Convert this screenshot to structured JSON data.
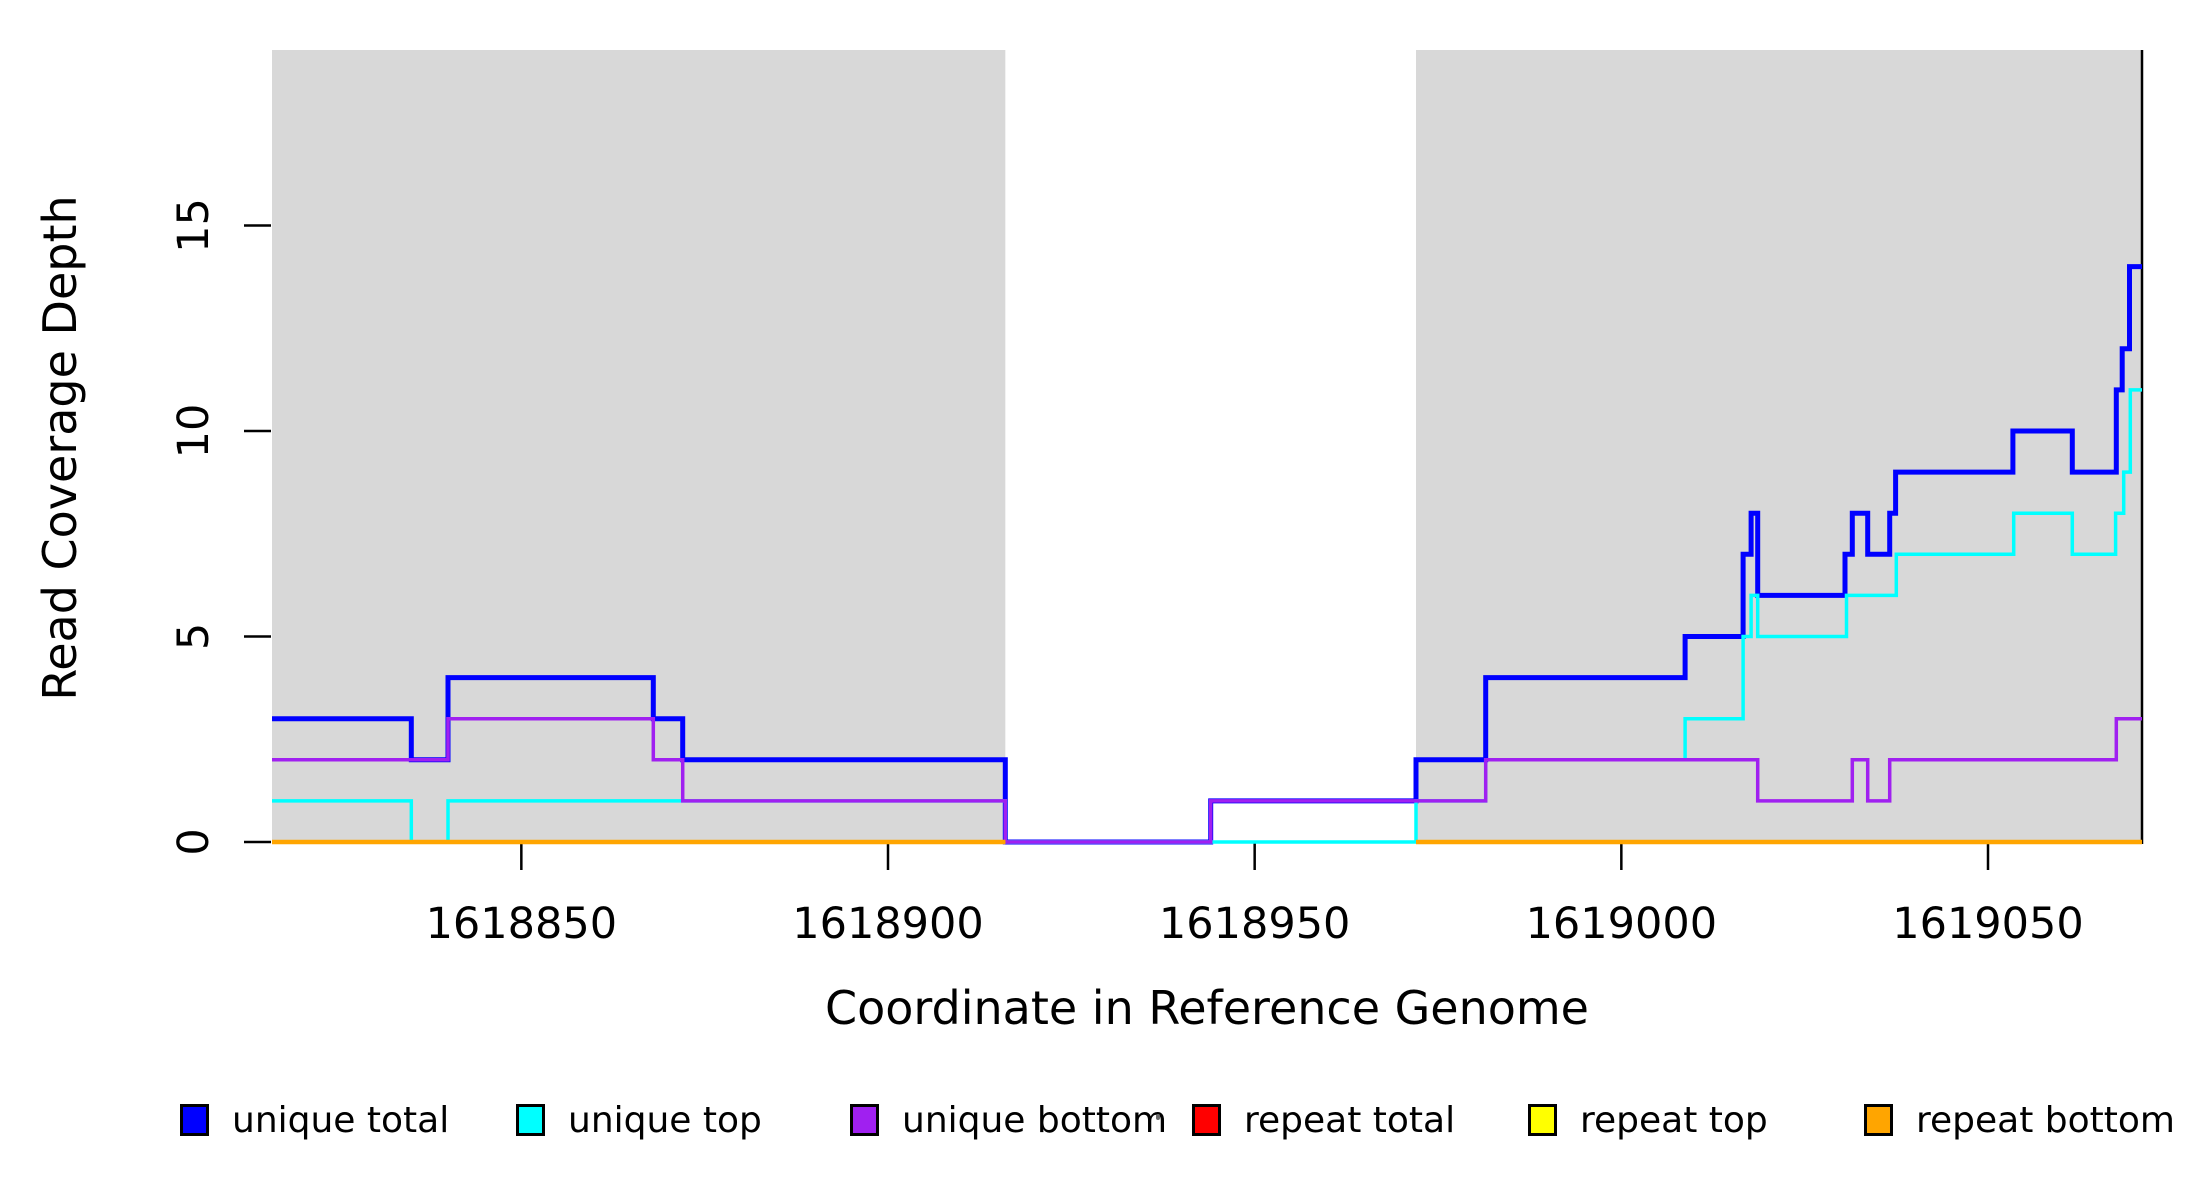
{
  "chart_data": {
    "type": "line",
    "subtype": "step",
    "title": "",
    "xlabel": "Coordinate in Reference Genome",
    "ylabel": "Read Coverage Depth",
    "x_range": [
      1618816,
      1619071
    ],
    "y_range": [
      0,
      19.3
    ],
    "x_ticks": [
      1618850,
      1618900,
      1618950,
      1619000,
      1619050
    ],
    "y_ticks": [
      0,
      5,
      10,
      15
    ],
    "grid": "off",
    "legend_position": "bottom",
    "shade_color": "#D8D8D8",
    "shaded_regions": [
      {
        "x0": 1618816,
        "x1": 1618916
      },
      {
        "x0": 1618972,
        "x1": 1619071
      }
    ],
    "series": [
      {
        "name": "unique total",
        "color": "#0000FF",
        "line_width": 5,
        "segments": [
          {
            "end": 1619071,
            "points": [
              [
                1618816,
                3
              ],
              [
                1618835,
                2
              ],
              [
                1618840,
                4
              ],
              [
                1618868,
                3
              ],
              [
                1618872,
                2
              ],
              [
                1618916,
                0
              ],
              [
                1618944,
                1
              ],
              [
                1618972,
                2
              ],
              [
                1618981.5,
                4
              ],
              [
                1619008.7,
                5
              ],
              [
                1619016.6,
                7
              ],
              [
                1619017.7,
                8
              ],
              [
                1619018.6,
                6
              ],
              [
                1619030.5,
                7
              ],
              [
                1619031.5,
                8
              ],
              [
                1619033.6,
                7
              ],
              [
                1619036.6,
                8
              ],
              [
                1619037.4,
                9
              ],
              [
                1619053.4,
                10
              ],
              [
                1619061.5,
                9
              ],
              [
                1619067.5,
                11
              ],
              [
                1619068.3,
                12
              ],
              [
                1619069.3,
                14
              ]
            ]
          }
        ]
      },
      {
        "name": "unique top",
        "color": "#00FFFF",
        "line_width": 3.5,
        "segments": [
          {
            "end": 1619071,
            "points": [
              [
                1618816,
                1
              ],
              [
                1618835,
                0
              ],
              [
                1618840,
                1
              ],
              [
                1618916,
                0
              ],
              [
                1618972,
                1
              ],
              [
                1618981.5,
                2
              ],
              [
                1619008.7,
                3
              ],
              [
                1619016.6,
                5
              ],
              [
                1619017.7,
                6
              ],
              [
                1619018.6,
                5
              ],
              [
                1619030.7,
                6
              ],
              [
                1619037.5,
                7
              ],
              [
                1619053.5,
                8
              ],
              [
                1619061.5,
                7
              ],
              [
                1619067.4,
                8
              ],
              [
                1619068.5,
                9
              ],
              [
                1619069.4,
                11
              ]
            ]
          }
        ]
      },
      {
        "name": "unique bottom",
        "color": "#A020F0",
        "line_width": 3.5,
        "segments": [
          {
            "end": 1619071,
            "points": [
              [
                1618816,
                2
              ],
              [
                1618840,
                3
              ],
              [
                1618868,
                2
              ],
              [
                1618872,
                1
              ],
              [
                1618916,
                0
              ],
              [
                1618944,
                1
              ],
              [
                1618981.5,
                2
              ],
              [
                1619018.6,
                1
              ],
              [
                1619031.5,
                2
              ],
              [
                1619033.6,
                1
              ],
              [
                1619036.6,
                2
              ],
              [
                1619067.5,
                3
              ]
            ]
          }
        ]
      },
      {
        "name": "repeat total",
        "color": "#FF0000",
        "line_width": 3,
        "segments": [
          {
            "end": 1618916,
            "points": [
              [
                1618816,
                0
              ]
            ]
          },
          {
            "end": 1619071,
            "points": [
              [
                1618972,
                0
              ]
            ]
          }
        ]
      },
      {
        "name": "repeat top",
        "color": "#FFFF00",
        "line_width": 3,
        "segments": [
          {
            "end": 1618916,
            "points": [
              [
                1618816,
                0
              ]
            ]
          },
          {
            "end": 1619071,
            "points": [
              [
                1618972,
                0
              ]
            ]
          }
        ]
      },
      {
        "name": "repeat bottom",
        "color": "#FFA500",
        "line_width": 4.5,
        "segments": [
          {
            "end": 1618916,
            "points": [
              [
                1618816,
                0
              ]
            ]
          },
          {
            "end": 1619071,
            "points": [
              [
                1618972,
                0
              ]
            ]
          }
        ]
      }
    ]
  },
  "legend": {
    "items": [
      {
        "label": "unique total",
        "color": "#0000FF"
      },
      {
        "label": "unique top",
        "color": "#00FFFF"
      },
      {
        "label": "unique bottom",
        "color": "#A020F0"
      },
      {
        "label": "repeat total",
        "color": "#FF0000"
      },
      {
        "label": "repeat top",
        "color": "#FFFF00"
      },
      {
        "label": "repeat bottom",
        "color": "#FFA500"
      }
    ]
  }
}
